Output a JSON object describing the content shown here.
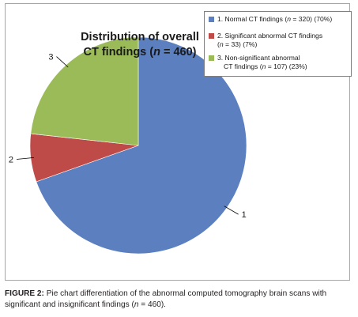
{
  "chart_data": {
    "type": "pie",
    "title": "Distribution of overall CT findings (n = 460)",
    "categories": [
      "1. Normal CT findings (n = 320) (70%)",
      "2. Significant abnormal CT findings (n = 33) (7%)",
      "3. Non-significant abnormal CT findings (n = 107) (23%)"
    ],
    "values": [
      320,
      33,
      107
    ],
    "percentages": [
      70,
      7,
      23
    ],
    "slice_labels": [
      "1",
      "2",
      "3"
    ],
    "colors": [
      "#5b7fbf",
      "#be4b48",
      "#9bbb59"
    ],
    "legend_position": "top-right"
  },
  "title": {
    "line1": "Distribution of overall",
    "line2_prefix": "CT findings (",
    "line2_n": "n",
    "line2_suffix": " = 460)"
  },
  "legend": {
    "items": [
      {
        "prefix": "1. Normal CT findings (",
        "n": "n",
        "suffix": " = 320) (70%)",
        "line2_prefix": "",
        "line2_n": "",
        "line2_suffix": ""
      },
      {
        "prefix": "2. Significant abnormal CT findings",
        "n": "",
        "suffix": "",
        "line2_prefix": "(",
        "line2_n": "n",
        "line2_suffix": " = 33) (7%)"
      },
      {
        "prefix": "3. Non-significant abnormal",
        "n": "",
        "suffix": "",
        "line2_prefix": "CT findings (",
        "line2_n": "n",
        "line2_suffix": " = 107) (23%)"
      }
    ]
  },
  "caption": {
    "label": "FIGURE 2:",
    "text": " Pie chart differentiation of the abnormal computed tomography brain scans with significant and insignificant findings (",
    "n": "n",
    "end": " = 460)."
  }
}
